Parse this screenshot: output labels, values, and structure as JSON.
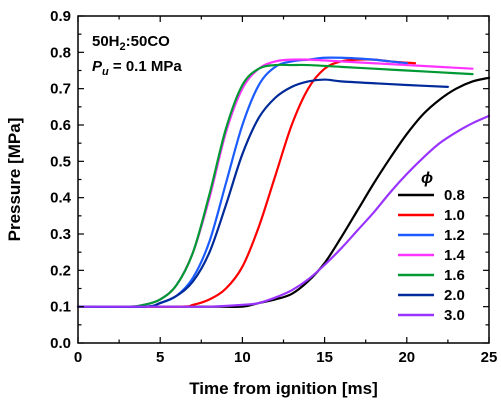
{
  "chart_data": {
    "type": "line",
    "xlabel": "Time from ignition [ms]",
    "ylabel": "Pressure [MPa]",
    "xlim": [
      0,
      25
    ],
    "ylim": [
      0.0,
      0.9
    ],
    "xticks": [
      "0",
      "5",
      "10",
      "15",
      "20",
      "25"
    ],
    "yticks": [
      "0.0",
      "0.1",
      "0.2",
      "0.3",
      "0.4",
      "0.5",
      "0.6",
      "0.7",
      "0.8",
      "0.9"
    ],
    "grid": false,
    "legend_placement": "bottom-right",
    "legend_title": "ϕ",
    "annotation": {
      "mixture_main": "50H",
      "mixture_sub": "2",
      "mixture_rest": ":50CO",
      "pressure_var": "P",
      "pressure_sub": "u",
      "pressure_value": " = 0.1 MPa"
    },
    "series": [
      {
        "name": "0.8",
        "color": "#000000",
        "x": [
          0,
          8,
          10,
          11,
          12,
          13,
          14,
          15,
          16,
          17,
          18,
          19,
          20,
          21,
          22,
          23,
          24,
          25
        ],
        "y": [
          0.1,
          0.1,
          0.1,
          0.11,
          0.12,
          0.135,
          0.17,
          0.22,
          0.29,
          0.365,
          0.44,
          0.51,
          0.575,
          0.63,
          0.67,
          0.7,
          0.72,
          0.73
        ]
      },
      {
        "name": "1.0",
        "color": "#ff0000",
        "x": [
          0,
          6,
          7,
          8,
          9,
          10,
          11,
          12,
          13,
          14,
          15,
          16,
          17,
          18,
          19,
          20.5
        ],
        "y": [
          0.1,
          0.1,
          0.105,
          0.12,
          0.15,
          0.21,
          0.32,
          0.46,
          0.6,
          0.7,
          0.755,
          0.775,
          0.78,
          0.78,
          0.775,
          0.77
        ]
      },
      {
        "name": "1.2",
        "color": "#1a5cff",
        "x": [
          0,
          4,
          5,
          6,
          7,
          8,
          9,
          10,
          11,
          12,
          13,
          14,
          15,
          16,
          17,
          18,
          19,
          20
        ],
        "y": [
          0.1,
          0.1,
          0.11,
          0.13,
          0.18,
          0.28,
          0.44,
          0.6,
          0.71,
          0.76,
          0.775,
          0.78,
          0.785,
          0.785,
          0.783,
          0.78,
          0.775,
          0.77
        ]
      },
      {
        "name": "1.4",
        "color": "#ff33ff",
        "x": [
          0,
          3,
          4,
          5,
          6,
          7,
          8,
          9,
          10,
          11,
          12,
          13,
          14,
          16,
          18,
          20,
          22,
          24
        ],
        "y": [
          0.1,
          0.1,
          0.105,
          0.12,
          0.16,
          0.25,
          0.4,
          0.58,
          0.7,
          0.755,
          0.775,
          0.78,
          0.78,
          0.775,
          0.77,
          0.765,
          0.76,
          0.755
        ]
      },
      {
        "name": "1.6",
        "color": "#009933",
        "x": [
          0,
          3,
          4,
          5,
          6,
          7,
          8,
          9,
          10,
          11,
          12,
          13,
          14,
          16,
          18,
          20,
          22,
          24
        ],
        "y": [
          0.1,
          0.1,
          0.105,
          0.12,
          0.16,
          0.25,
          0.41,
          0.59,
          0.71,
          0.755,
          0.765,
          0.765,
          0.765,
          0.76,
          0.755,
          0.75,
          0.745,
          0.74
        ]
      },
      {
        "name": "2.0",
        "color": "#002a99",
        "x": [
          0,
          4,
          5,
          6,
          7,
          8,
          9,
          10,
          11,
          12,
          13,
          14,
          15,
          16,
          18,
          20,
          22.5
        ],
        "y": [
          0.1,
          0.1,
          0.11,
          0.13,
          0.17,
          0.25,
          0.38,
          0.52,
          0.62,
          0.675,
          0.705,
          0.72,
          0.725,
          0.72,
          0.715,
          0.71,
          0.705
        ]
      },
      {
        "name": "3.0",
        "color": "#9933ff",
        "x": [
          0,
          6,
          8,
          10,
          11,
          12,
          13,
          14,
          15,
          16,
          17,
          18,
          19,
          20,
          21,
          22,
          23,
          24,
          25
        ],
        "y": [
          0.1,
          0.1,
          0.1,
          0.105,
          0.11,
          0.125,
          0.145,
          0.175,
          0.215,
          0.26,
          0.31,
          0.36,
          0.415,
          0.465,
          0.51,
          0.55,
          0.58,
          0.605,
          0.625
        ]
      }
    ]
  }
}
